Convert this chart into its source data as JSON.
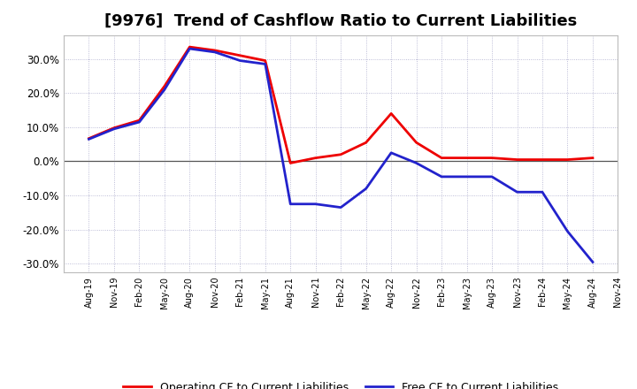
{
  "title": "[9976]  Trend of Cashflow Ratio to Current Liabilities",
  "labels": [
    "Aug-19",
    "Nov-19",
    "Feb-20",
    "May-20",
    "Aug-20",
    "Nov-20",
    "Feb-21",
    "May-21",
    "Aug-21",
    "Nov-21",
    "Feb-22",
    "May-22",
    "Aug-22",
    "Nov-22",
    "Feb-23",
    "May-23",
    "Aug-23",
    "Nov-23",
    "Feb-24",
    "May-24",
    "Aug-24",
    "Nov-24"
  ],
  "operating_cf": [
    0.067,
    0.098,
    0.12,
    0.22,
    0.335,
    0.325,
    0.31,
    0.295,
    -0.005,
    0.01,
    0.02,
    0.055,
    0.14,
    0.055,
    0.01,
    0.01,
    0.01,
    0.005,
    0.005,
    0.005,
    0.01,
    null
  ],
  "free_cf": [
    0.065,
    0.095,
    0.115,
    0.21,
    0.33,
    0.32,
    0.295,
    0.285,
    -0.125,
    -0.125,
    -0.135,
    -0.08,
    0.025,
    -0.005,
    -0.045,
    -0.045,
    -0.045,
    -0.09,
    -0.09,
    -0.205,
    -0.295,
    null
  ],
  "operating_color": "#EE0000",
  "free_color": "#2222CC",
  "ylim": [
    -0.325,
    0.37
  ],
  "yticks": [
    -0.3,
    -0.2,
    -0.1,
    0.0,
    0.1,
    0.2,
    0.3
  ],
  "background_color": "#FFFFFF",
  "plot_bg_color": "#FFFFFF",
  "grid_color": "#AAAACC",
  "zero_line_color": "#555555",
  "legend_op": "Operating CF to Current Liabilities",
  "legend_free": "Free CF to Current Liabilities",
  "title_fontsize": 13,
  "linewidth": 2.0
}
